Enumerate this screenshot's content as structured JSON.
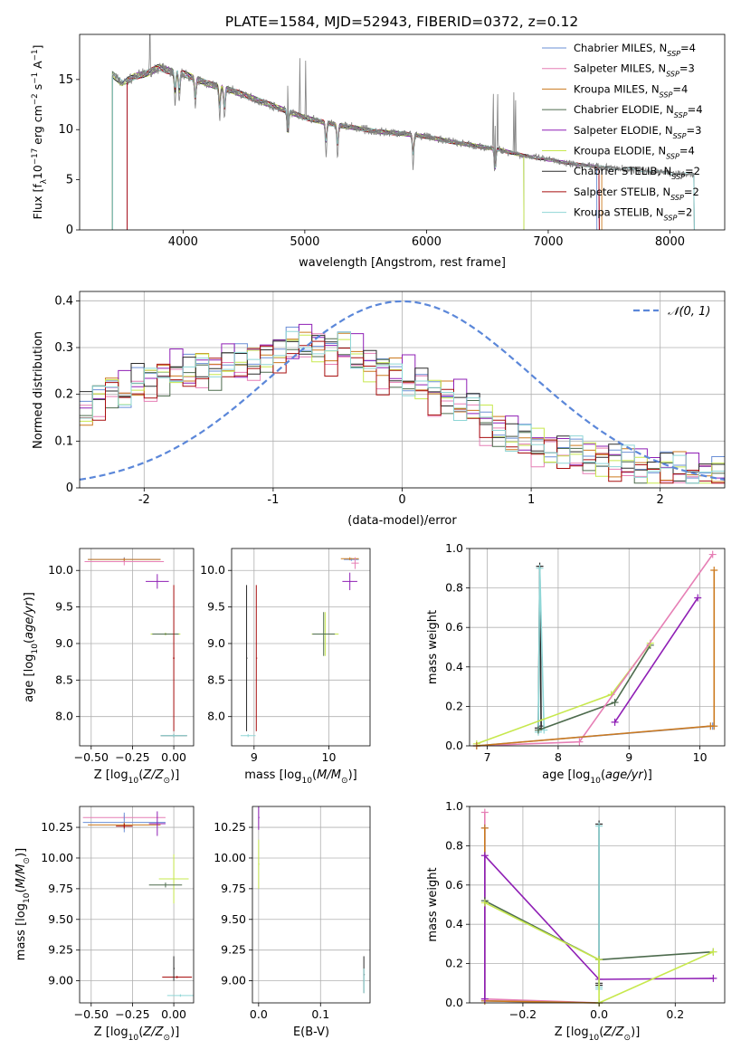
{
  "figure": {
    "title": "PLATE=1584, MJD=52943, FIBERID=0372, z=0.12"
  },
  "colors": {
    "Chabrier MILES": "#6a8fd6",
    "Salpeter MILES": "#e67fb5",
    "Kroupa MILES": "#cc7a1f",
    "Chabrier ELODIE": "#4d6b4d",
    "Salpeter ELODIE": "#8f1fb5",
    "Kroupa ELODIE": "#c7e84d",
    "Chabrier STELIB": "#2b2b2b",
    "Salpeter STELIB": "#a80f0f",
    "Kroupa STELIB": "#8fd6d6",
    "data": "#808080",
    "normal": "#5b87d9"
  },
  "chart_data": [
    {
      "type": "line",
      "panel": "spectrum",
      "xlabel": "wavelength [Angstrom, rest frame]",
      "ylabel_parts": {
        "pre": "Flux [f",
        "sub_l": "λ",
        "mid": "10",
        "sup_1": "−17",
        "mid2": " erg cm",
        "sup_2": "−2",
        "mid3": " s",
        "sup_3": "−1",
        "mid4": " A",
        "sup_4": "−1",
        "post": "]"
      },
      "xlim": [
        3150,
        8450
      ],
      "ylim": [
        0,
        19.5
      ],
      "xticks": [
        4000,
        5000,
        6000,
        7000,
        8000
      ],
      "yticks": [
        0,
        5,
        10,
        15
      ],
      "legend_position": "upper-right",
      "legend": [
        {
          "name": "Chabrier MILES",
          "nssp": "4"
        },
        {
          "name": "Salpeter MILES",
          "nssp": "3"
        },
        {
          "name": "Kroupa MILES",
          "nssp": "4"
        },
        {
          "name": "Chabrier ELODIE",
          "nssp": "4"
        },
        {
          "name": "Salpeter ELODIE",
          "nssp": "3"
        },
        {
          "name": "Kroupa ELODIE",
          "nssp": "4"
        },
        {
          "name": "Chabrier STELIB",
          "nssp": "2"
        },
        {
          "name": "Salpeter STELIB",
          "nssp": "2"
        },
        {
          "name": "Kroupa STELIB",
          "nssp": "2"
        }
      ],
      "continuum": {
        "x": [
          3420,
          3500,
          3600,
          3700,
          3800,
          3900,
          4000,
          4200,
          4400,
          4600,
          4800,
          5000,
          5200,
          5400,
          5600,
          5800,
          6000,
          6200,
          6400,
          6600,
          6800,
          7000,
          7200,
          7400,
          7600,
          7800,
          8000,
          8200
        ],
        "y": [
          15.5,
          14.6,
          15.3,
          15.6,
          16.2,
          15.8,
          15.6,
          14.6,
          13.9,
          13.0,
          12.1,
          11.2,
          10.6,
          10.2,
          9.8,
          9.6,
          9.3,
          8.8,
          8.4,
          8.0,
          7.4,
          7.0,
          6.6,
          6.3,
          6.1,
          5.9,
          5.7,
          5.5
        ]
      },
      "absorption_lines": [
        3934,
        3969,
        4101,
        4300,
        4340,
        4861,
        5175,
        5270,
        5890,
        6563
      ],
      "emission_lines": [
        3727,
        4861,
        4959,
        5007,
        6548,
        6563,
        6584,
        6717,
        6731
      ]
    },
    {
      "type": "histogram",
      "panel": "residuals",
      "xlabel": "(data-model)/error",
      "ylabel": "Normed distribution",
      "xlim": [
        -2.5,
        2.5
      ],
      "ylim": [
        0,
        0.42
      ],
      "xticks": [
        -2,
        -1,
        0,
        1,
        2
      ],
      "yticks": [
        0.0,
        0.1,
        0.2,
        0.3,
        0.4
      ],
      "legend_position": "upper-right",
      "reference_curve": {
        "label": "𝒩(0, 1)",
        "mean": 0,
        "sigma": 1
      },
      "bin_edges": [
        -2.5,
        -2.4,
        -2.3,
        -2.2,
        -2.1,
        -2.0,
        -1.9,
        -1.8,
        -1.7,
        -1.6,
        -1.5,
        -1.4,
        -1.3,
        -1.2,
        -1.1,
        -1.0,
        -0.9,
        -0.8,
        -0.7,
        -0.6,
        -0.5,
        -0.4,
        -0.3,
        -0.2,
        -0.1,
        0.0,
        0.1,
        0.2,
        0.3,
        0.4,
        0.5,
        0.6,
        0.7,
        0.8,
        0.9,
        1.0,
        1.1,
        1.2,
        1.3,
        1.4,
        1.5,
        1.6,
        1.7,
        1.8,
        1.9,
        2.0,
        2.1,
        2.2,
        2.3,
        2.4,
        2.5
      ],
      "base_counts": [
        0.16,
        0.19,
        0.21,
        0.2,
        0.22,
        0.23,
        0.24,
        0.25,
        0.24,
        0.26,
        0.25,
        0.27,
        0.26,
        0.27,
        0.28,
        0.29,
        0.3,
        0.31,
        0.3,
        0.29,
        0.3,
        0.28,
        0.26,
        0.25,
        0.24,
        0.23,
        0.22,
        0.2,
        0.19,
        0.18,
        0.17,
        0.14,
        0.12,
        0.11,
        0.1,
        0.09,
        0.08,
        0.075,
        0.07,
        0.065,
        0.06,
        0.055,
        0.05,
        0.045,
        0.04,
        0.04,
        0.035,
        0.03,
        0.03,
        0.025
      ],
      "series_offsets": [
        {
          "name": "Chabrier MILES",
          "shift": 0.01
        },
        {
          "name": "Salpeter MILES",
          "shift": -0.01
        },
        {
          "name": "Kroupa MILES",
          "shift": 0.005
        },
        {
          "name": "Chabrier ELODIE",
          "shift": -0.005
        },
        {
          "name": "Salpeter ELODIE",
          "shift": 0.015
        },
        {
          "name": "Kroupa ELODIE",
          "shift": 0.0
        },
        {
          "name": "Chabrier STELIB",
          "shift": 0.008
        },
        {
          "name": "Salpeter STELIB",
          "shift": -0.012
        },
        {
          "name": "Kroupa STELIB",
          "shift": 0.002
        }
      ]
    },
    {
      "type": "scatter",
      "panel": "age_vs_Z",
      "xlabel_parts": {
        "pre": "Z [log",
        "sub": "10",
        "mid": "(",
        "it": "Z/Z",
        "sub2": "⊙",
        "post": ")]"
      },
      "ylabel_parts": {
        "pre": "age  [log",
        "sub": "10",
        "mid": "(",
        "it": "age/yr",
        "post": ")]"
      },
      "xlim": [
        -0.57,
        0.12
      ],
      "ylim": [
        7.6,
        10.3
      ],
      "xticks": [
        -0.5,
        -0.25,
        0.0
      ],
      "xtick_labels": [
        "−0.50",
        "−0.25",
        "0.00"
      ],
      "yticks": [
        8.0,
        8.5,
        9.0,
        9.5,
        10.0
      ],
      "ytick_labels": [
        "8.0",
        "8.5",
        "9.0",
        "9.5",
        "10.0"
      ],
      "points": [
        {
          "series": "Chabrier MILES",
          "x": -0.3,
          "y": 10.15,
          "dx": 0.22,
          "dy": 0.03
        },
        {
          "series": "Salpeter MILES",
          "x": -0.3,
          "y": 10.12,
          "dx": 0.24,
          "dy": 0.05
        },
        {
          "series": "Kroupa MILES",
          "x": -0.3,
          "y": 10.15,
          "dx": 0.22,
          "dy": 0.02
        },
        {
          "series": "Salpeter ELODIE",
          "x": -0.1,
          "y": 9.85,
          "dx": 0.07,
          "dy": 0.1
        },
        {
          "series": "Kroupa ELODIE",
          "x": -0.05,
          "y": 9.13,
          "dx": 0.09,
          "dy": 0.02
        },
        {
          "series": "Chabrier ELODIE",
          "x": -0.05,
          "y": 9.13,
          "dx": 0.08,
          "dy": 0.01
        },
        {
          "series": "Salpeter STELIB",
          "x": 0.0,
          "y": 8.8,
          "dx": 0.005,
          "dy": 1.0
        },
        {
          "series": "Chabrier STELIB",
          "x": 0.0,
          "y": 7.74,
          "dx": 0.08,
          "dy": 0.02
        },
        {
          "series": "Kroupa STELIB",
          "x": 0.0,
          "y": 7.74,
          "dx": 0.08,
          "dy": 0.02
        }
      ]
    },
    {
      "type": "scatter",
      "panel": "age_vs_mass",
      "xlabel_parts": {
        "pre": "mass [log",
        "sub": "10",
        "mid": "(",
        "it": "M/M",
        "sub2": "⊙",
        "post": ")]"
      },
      "xlim": [
        8.7,
        10.55
      ],
      "ylim": [
        7.6,
        10.3
      ],
      "xticks": [
        9,
        10
      ],
      "xtick_labels": [
        "9",
        "10"
      ],
      "yticks": [
        8.0,
        8.5,
        9.0,
        9.5,
        10.0
      ],
      "ytick_labels": [
        "8.0",
        "8.5",
        "9.0",
        "9.5",
        "10.0"
      ],
      "points": [
        {
          "series": "Chabrier MILES",
          "x": 10.3,
          "y": 10.15,
          "dx": 0.1,
          "dy": 0.02
        },
        {
          "series": "Kroupa MILES",
          "x": 10.28,
          "y": 10.16,
          "dx": 0.12,
          "dy": 0.02
        },
        {
          "series": "Salpeter ELODIE",
          "x": 10.28,
          "y": 9.85,
          "dx": 0.1,
          "dy": 0.12
        },
        {
          "series": "Salpeter MILES",
          "x": 10.35,
          "y": 10.1,
          "dx": 0.05,
          "dy": 0.08
        },
        {
          "series": "Kroupa ELODIE",
          "x": 9.95,
          "y": 9.13,
          "dx": 0.18,
          "dy": 0.3
        },
        {
          "series": "Chabrier ELODIE",
          "x": 9.93,
          "y": 9.13,
          "dx": 0.15,
          "dy": 0.3
        },
        {
          "series": "Salpeter STELIB",
          "x": 9.03,
          "y": 8.8,
          "dx": 0.0,
          "dy": 1.0
        },
        {
          "series": "Chabrier STELIB",
          "x": 8.9,
          "y": 8.8,
          "dx": 0.0,
          "dy": 1.0
        },
        {
          "series": "Kroupa STELIB",
          "x": 8.92,
          "y": 7.74,
          "dx": 0.1,
          "dy": 0.02
        }
      ]
    },
    {
      "type": "line",
      "panel": "massweight_vs_age",
      "xlabel_parts": {
        "pre": "age  [log",
        "sub": "10",
        "mid": "(",
        "it": "age/yr",
        "post": ")]"
      },
      "ylabel": "mass weight",
      "xlim": [
        6.75,
        10.35
      ],
      "ylim": [
        0,
        1.0
      ],
      "xticks": [
        7,
        8,
        9,
        10
      ],
      "yticks": [
        0.0,
        0.2,
        0.4,
        0.6,
        0.8,
        1.0
      ],
      "ytick_labels": [
        "0.0",
        "0.2",
        "0.4",
        "0.6",
        "0.8",
        "1.0"
      ],
      "series": [
        {
          "name": "Chabrier STELIB",
          "x": [
            7.72,
            7.74,
            7.76
          ],
          "y": [
            0.09,
            0.91,
            0.1
          ]
        },
        {
          "name": "Kroupa STELIB",
          "x": [
            7.72,
            7.74,
            7.8
          ],
          "y": [
            0.07,
            0.9,
            0.08
          ]
        },
        {
          "name": "Chabrier ELODIE",
          "x": [
            7.72,
            8.8,
            9.3
          ],
          "y": [
            0.08,
            0.22,
            0.51
          ]
        },
        {
          "name": "Kroupa ELODIE",
          "x": [
            6.85,
            8.75,
            9.3
          ],
          "y": [
            0.01,
            0.26,
            0.52
          ]
        },
        {
          "name": "Salpeter ELODIE",
          "x": [
            8.8,
            9.97
          ],
          "y": [
            0.12,
            0.75
          ]
        },
        {
          "name": "Salpeter MILES",
          "x": [
            6.85,
            8.3,
            10.18
          ],
          "y": [
            0.0,
            0.02,
            0.97
          ]
        },
        {
          "name": "Chabrier MILES",
          "x": [
            6.85,
            10.18
          ],
          "y": [
            0.0,
            0.1
          ]
        },
        {
          "name": "Kroupa MILES",
          "x": [
            6.85,
            10.15,
            10.2,
            10.2
          ],
          "y": [
            0.0,
            0.1,
            0.1,
            0.89
          ]
        }
      ]
    },
    {
      "type": "scatter",
      "panel": "mass_vs_Z",
      "xlabel_parts": {
        "pre": "Z [log",
        "sub": "10",
        "mid": "(",
        "it": "Z/Z",
        "sub2": "⊙",
        "post": ")]"
      },
      "ylabel_parts": {
        "pre": "mass [log",
        "sub": "10",
        "mid": "(",
        "it": "M/M",
        "sub2": "⊙",
        "post": ")]"
      },
      "xlim": [
        -0.57,
        0.12
      ],
      "ylim": [
        8.82,
        10.42
      ],
      "xticks": [
        -0.5,
        -0.25,
        0.0
      ],
      "xtick_labels": [
        "−0.50",
        "−0.25",
        "0.00"
      ],
      "yticks": [
        9.0,
        9.25,
        9.5,
        9.75,
        10.0,
        10.25
      ],
      "ytick_labels": [
        "9.00",
        "9.25",
        "9.50",
        "9.75",
        "10.00",
        "10.25"
      ],
      "points": [
        {
          "series": "Salpeter MILES",
          "x": -0.3,
          "y": 10.33,
          "dx": 0.25,
          "dy": 0.02
        },
        {
          "series": "Chabrier MILES",
          "x": -0.3,
          "y": 10.29,
          "dx": 0.25,
          "dy": 0.08
        },
        {
          "series": "Kroupa MILES",
          "x": -0.3,
          "y": 10.27,
          "dx": 0.22,
          "dy": 0.02
        },
        {
          "series": "Salpeter ELODIE",
          "x": -0.1,
          "y": 10.28,
          "dx": 0.05,
          "dy": 0.1
        },
        {
          "series": "Salpeter STELIB",
          "x": -0.3,
          "y": 10.26,
          "dx": 0.05,
          "dy": 0.02
        },
        {
          "series": "Kroupa ELODIE",
          "x": 0.0,
          "y": 9.83,
          "dx": 0.09,
          "dy": 0.2
        },
        {
          "series": "Chabrier ELODIE",
          "x": -0.05,
          "y": 9.78,
          "dx": 0.1,
          "dy": 0.02
        },
        {
          "series": "Salpeter STELIB",
          "x": 0.02,
          "y": 9.03,
          "dx": 0.09,
          "dy": 0.01
        },
        {
          "series": "Chabrier STELIB",
          "x": 0.0,
          "y": 9.1,
          "dx": 0.0,
          "dy": 0.1
        },
        {
          "series": "Kroupa STELIB",
          "x": 0.04,
          "y": 8.88,
          "dx": 0.08,
          "dy": 0.01
        }
      ]
    },
    {
      "type": "scatter",
      "panel": "mass_vs_EBV",
      "xlabel": "E(B-V)",
      "xlim": [
        -0.01,
        0.18
      ],
      "ylim": [
        8.82,
        10.42
      ],
      "xticks": [
        0.0,
        0.1
      ],
      "xtick_labels": [
        "0.0",
        "0.1"
      ],
      "yticks": [
        9.0,
        9.25,
        9.5,
        9.75,
        10.0,
        10.25
      ],
      "ytick_labels": [
        "9.00",
        "9.25",
        "9.50",
        "9.75",
        "10.00",
        "10.25"
      ],
      "points": [
        {
          "series": "Salpeter ELODIE",
          "x": 0.0,
          "y": 10.33,
          "dx": 0.0,
          "dy": 0.1
        },
        {
          "series": "Kroupa ELODIE",
          "x": 0.0,
          "y": 9.95,
          "dx": 0.0,
          "dy": 0.2
        },
        {
          "series": "Chabrier STELIB",
          "x": 0.17,
          "y": 9.05,
          "dx": 0.0,
          "dy": 0.15
        },
        {
          "series": "Kroupa STELIB",
          "x": 0.17,
          "y": 9.0,
          "dx": 0.0,
          "dy": 0.1
        }
      ]
    },
    {
      "type": "line",
      "panel": "massweight_vs_Z",
      "xlabel_parts": {
        "pre": "Z [log",
        "sub": "10",
        "mid": "(",
        "it": "Z/Z",
        "sub2": "⊙",
        "post": ")]"
      },
      "ylabel": "mass weight",
      "xlim": [
        -0.34,
        0.33
      ],
      "ylim": [
        0,
        1.0
      ],
      "xticks": [
        -0.2,
        0.0,
        0.2
      ],
      "xtick_labels": [
        "−0.2",
        "0.0",
        "0.2"
      ],
      "yticks": [
        0.0,
        0.2,
        0.4,
        0.6,
        0.8,
        1.0
      ],
      "ytick_labels": [
        "0.0",
        "0.2",
        "0.4",
        "0.6",
        "0.8",
        "1.0"
      ],
      "series": [
        {
          "name": "Chabrier STELIB",
          "x": [
            0.0,
            0.0,
            0.0
          ],
          "y": [
            0.1,
            0.91,
            0.09
          ]
        },
        {
          "name": "Kroupa STELIB",
          "x": [
            0.0,
            0.0,
            0.0
          ],
          "y": [
            0.08,
            0.9,
            0.07
          ]
        },
        {
          "name": "Salpeter MILES",
          "x": [
            -0.3,
            -0.3,
            0.0
          ],
          "y": [
            0.97,
            0.02,
            0.0
          ]
        },
        {
          "name": "Chabrier MILES",
          "x": [
            -0.3,
            -0.3,
            0.0
          ],
          "y": [
            0.89,
            0.01,
            0.0
          ]
        },
        {
          "name": "Kroupa MILES",
          "x": [
            -0.3,
            -0.3,
            0.0
          ],
          "y": [
            0.89,
            0.01,
            0.0
          ]
        },
        {
          "name": "Salpeter ELODIE",
          "x": [
            -0.3,
            -0.3,
            0.0,
            0.3
          ],
          "y": [
            0.02,
            0.75,
            0.12,
            0.125
          ]
        },
        {
          "name": "Chabrier ELODIE",
          "x": [
            -0.3,
            0.0,
            0.3
          ],
          "y": [
            0.52,
            0.22,
            0.26
          ]
        },
        {
          "name": "Kroupa ELODIE",
          "x": [
            -0.3,
            0.0,
            0.0,
            0.3
          ],
          "y": [
            0.51,
            0.22,
            0.0,
            0.26
          ]
        }
      ]
    }
  ]
}
